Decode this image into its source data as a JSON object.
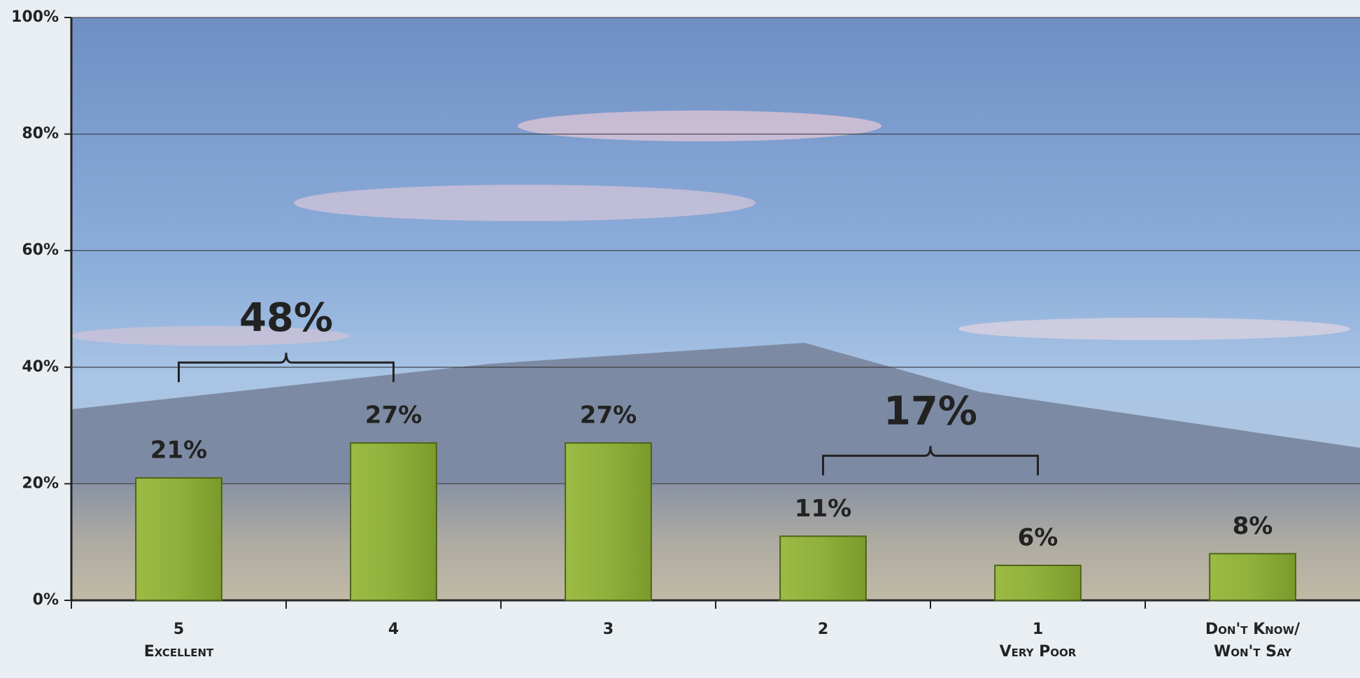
{
  "chart_data": {
    "type": "bar",
    "categories": [
      [
        "5",
        "Excellent"
      ],
      [
        "4"
      ],
      [
        "3"
      ],
      [
        "2"
      ],
      [
        "1",
        "Very Poor"
      ],
      [
        "Don't Know/",
        "Won't Say"
      ]
    ],
    "values": [
      21,
      27,
      27,
      11,
      6,
      8
    ],
    "value_labels": [
      "21%",
      "27%",
      "27%",
      "11%",
      "6%",
      "8%"
    ],
    "color": "#8fb03a",
    "ylim": [
      0,
      100
    ],
    "yticks": [
      {
        "value": 0,
        "label": "0%"
      },
      {
        "value": 20,
        "label": "20%"
      },
      {
        "value": 40,
        "label": "40%"
      },
      {
        "value": 60,
        "label": "60%"
      },
      {
        "value": 80,
        "label": "80%"
      },
      {
        "value": 100,
        "label": "100%"
      }
    ],
    "grid": true,
    "annotations": [
      "48%",
      "17%"
    ]
  }
}
